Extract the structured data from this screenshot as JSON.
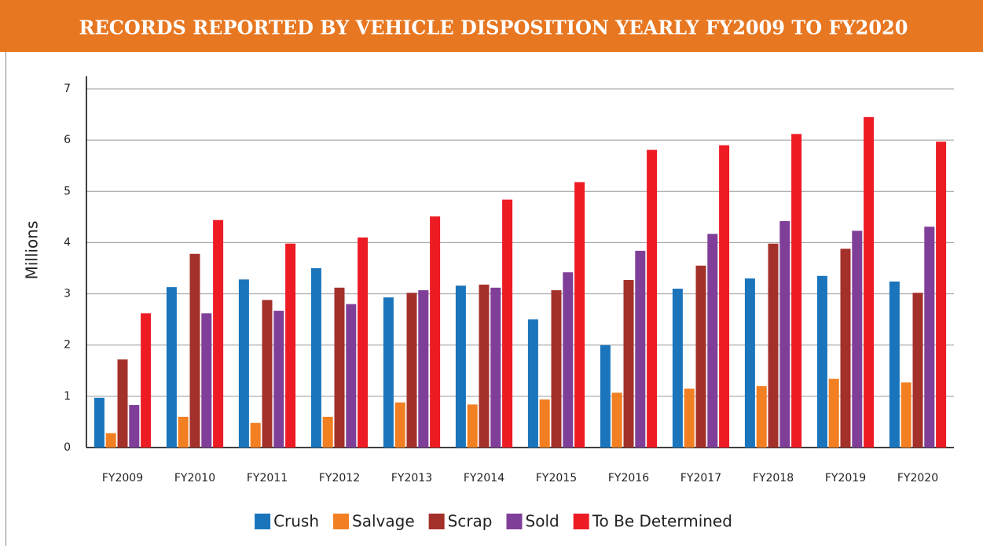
{
  "chart_data": {
    "type": "bar",
    "title": "RECORDS REPORTED BY VEHICLE DISPOSITION YEARLY FY2009 TO FY2020",
    "y_label": "Millions",
    "categories": [
      "FY2009",
      "FY2010",
      "FY2011",
      "FY2012",
      "FY2013",
      "FY2014",
      "FY2015",
      "FY2016",
      "FY2017",
      "FY2018",
      "FY2019",
      "FY2020"
    ],
    "series": [
      {
        "name": "Crush",
        "color": "#1a75bc",
        "values": [
          0.97,
          3.13,
          3.28,
          3.5,
          2.93,
          3.16,
          2.5,
          2.0,
          3.1,
          3.3,
          3.35,
          3.24
        ]
      },
      {
        "name": "Salvage",
        "color": "#f27f22",
        "values": [
          0.28,
          0.6,
          0.48,
          0.6,
          0.88,
          0.84,
          0.94,
          1.07,
          1.15,
          1.2,
          1.34,
          1.27
        ]
      },
      {
        "name": "Scrap",
        "color": "#a4302a",
        "values": [
          1.72,
          3.78,
          2.88,
          3.12,
          3.02,
          3.18,
          3.07,
          3.27,
          3.55,
          3.98,
          3.88,
          3.02
        ]
      },
      {
        "name": "Sold",
        "color": "#7f3f98",
        "values": [
          0.83,
          2.62,
          2.67,
          2.8,
          3.07,
          3.12,
          3.42,
          3.84,
          4.17,
          4.42,
          4.23,
          4.31
        ]
      },
      {
        "name": "To Be Determined",
        "color": "#ed1c24",
        "values": [
          2.62,
          4.44,
          3.98,
          4.1,
          4.51,
          4.84,
          5.18,
          5.81,
          5.9,
          6.12,
          6.45,
          5.97
        ]
      }
    ],
    "ylim": [
      0,
      7
    ],
    "yticks": [
      0,
      1,
      2,
      3,
      4,
      5,
      6,
      7
    ],
    "grid": true,
    "legend": "bottom"
  }
}
